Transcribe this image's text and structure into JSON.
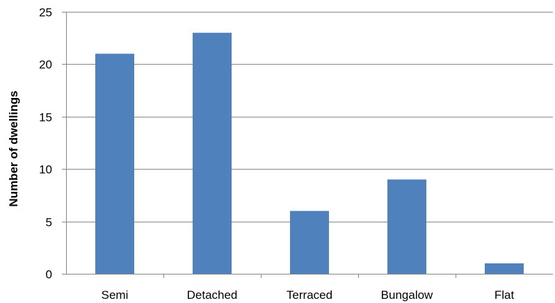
{
  "chart_data": {
    "type": "bar",
    "title": "",
    "xlabel": "",
    "ylabel": "Number of dwellings",
    "categories": [
      "Semi",
      "Detached",
      "Terraced",
      "Bungalow",
      "Flat"
    ],
    "values": [
      21,
      23,
      6,
      9,
      1
    ],
    "ylim": [
      0,
      25
    ],
    "yticks": [
      0,
      5,
      10,
      15,
      20,
      25
    ],
    "grid": true,
    "legend": "none",
    "bar_color": "#4F81BD",
    "grid_color": "#868686"
  }
}
